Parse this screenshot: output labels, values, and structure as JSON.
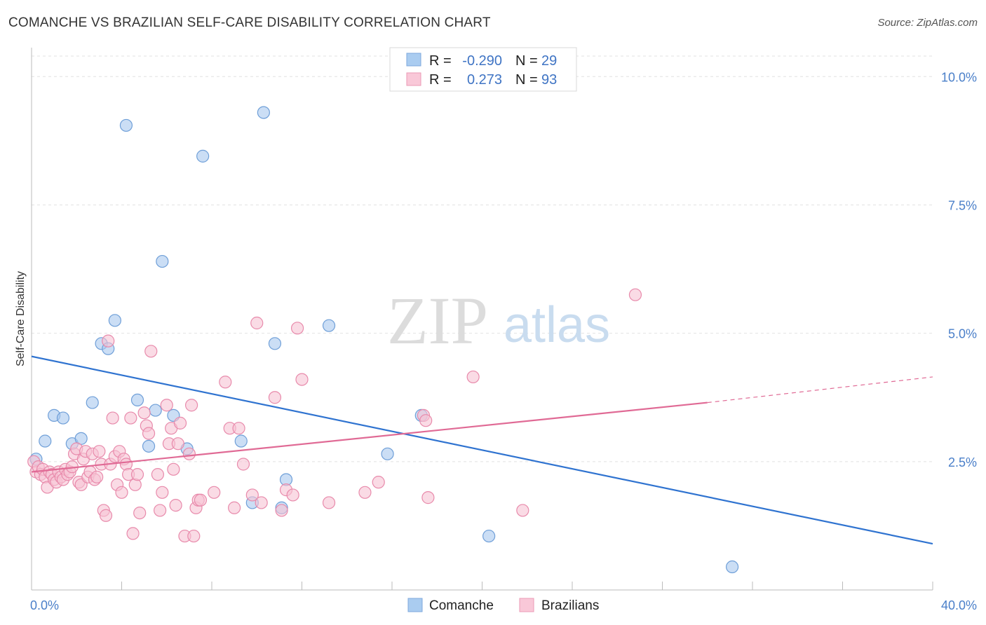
{
  "title": "COMANCHE VS BRAZILIAN SELF-CARE DISABILITY CORRELATION CHART",
  "source": "Source: ZipAtlas.com",
  "watermark": {
    "zip": "ZIP",
    "atlas": "atlas"
  },
  "chart_data": {
    "type": "scatter",
    "ylabel": "Self-Care Disability",
    "xlim": [
      0,
      40
    ],
    "ylim": [
      0,
      10.4
    ],
    "x_tick_labels": [
      "0.0%",
      "40.0%"
    ],
    "y_ticks": [
      2.5,
      5.0,
      7.5,
      10.0
    ],
    "y_tick_labels": [
      "2.5%",
      "5.0%",
      "7.5%",
      "10.0%"
    ],
    "grid": "horizontal dashed",
    "legend": {
      "placement": "top-center",
      "rows": [
        {
          "r_label": "R =",
          "r_value": "-0.290",
          "n_label": "N =",
          "n_value": "29",
          "color": "#aaccf0"
        },
        {
          "r_label": "R =",
          "r_value": "0.273",
          "n_label": "N =",
          "n_value": "93",
          "color": "#f5b8cc"
        }
      ]
    },
    "series": [
      {
        "name": "Comanche",
        "color": "#a9c8ee",
        "stroke": "#6f9fd8",
        "trend": {
          "x0": 0,
          "y0": 4.55,
          "x1": 40,
          "y1": 0.9,
          "color": "#2f73d0"
        },
        "points": [
          [
            0.2,
            2.55
          ],
          [
            0.6,
            2.9
          ],
          [
            1.0,
            3.4
          ],
          [
            1.4,
            3.35
          ],
          [
            1.8,
            2.85
          ],
          [
            2.2,
            2.95
          ],
          [
            2.7,
            3.65
          ],
          [
            3.1,
            4.8
          ],
          [
            3.4,
            4.7
          ],
          [
            3.7,
            5.25
          ],
          [
            4.2,
            9.05
          ],
          [
            4.7,
            3.7
          ],
          [
            5.2,
            2.8
          ],
          [
            5.5,
            3.5
          ],
          [
            5.8,
            6.4
          ],
          [
            6.3,
            3.4
          ],
          [
            6.9,
            2.75
          ],
          [
            7.6,
            8.45
          ],
          [
            9.3,
            2.9
          ],
          [
            9.8,
            1.7
          ],
          [
            10.3,
            9.3
          ],
          [
            10.8,
            4.8
          ],
          [
            11.1,
            1.6
          ],
          [
            11.3,
            2.15
          ],
          [
            13.2,
            5.15
          ],
          [
            15.8,
            2.65
          ],
          [
            17.3,
            3.4
          ],
          [
            20.3,
            1.05
          ],
          [
            31.1,
            0.45
          ]
        ]
      },
      {
        "name": "Brazilians",
        "color": "#f7c3d3",
        "stroke": "#e88aab",
        "trend": {
          "x0": 0,
          "y0": 2.3,
          "x1": 30,
          "y1": 3.65,
          "x2": 40,
          "y2": 4.15,
          "color": "#e06a95"
        },
        "points": [
          [
            0.1,
            2.5
          ],
          [
            0.2,
            2.3
          ],
          [
            0.3,
            2.4
          ],
          [
            0.4,
            2.25
          ],
          [
            0.5,
            2.35
          ],
          [
            0.6,
            2.2
          ],
          [
            0.7,
            2.0
          ],
          [
            0.8,
            2.3
          ],
          [
            0.9,
            2.25
          ],
          [
            1.0,
            2.15
          ],
          [
            1.1,
            2.1
          ],
          [
            1.2,
            2.3
          ],
          [
            1.3,
            2.2
          ],
          [
            1.4,
            2.15
          ],
          [
            1.5,
            2.35
          ],
          [
            1.6,
            2.25
          ],
          [
            1.7,
            2.3
          ],
          [
            1.8,
            2.4
          ],
          [
            1.9,
            2.65
          ],
          [
            2.0,
            2.75
          ],
          [
            2.1,
            2.1
          ],
          [
            2.2,
            2.05
          ],
          [
            2.3,
            2.55
          ],
          [
            2.4,
            2.7
          ],
          [
            2.5,
            2.2
          ],
          [
            2.6,
            2.3
          ],
          [
            2.7,
            2.65
          ],
          [
            2.8,
            2.15
          ],
          [
            2.9,
            2.2
          ],
          [
            3.0,
            2.7
          ],
          [
            3.1,
            2.45
          ],
          [
            3.2,
            1.55
          ],
          [
            3.3,
            1.45
          ],
          [
            3.4,
            4.85
          ],
          [
            3.5,
            2.45
          ],
          [
            3.6,
            3.35
          ],
          [
            3.7,
            2.6
          ],
          [
            3.8,
            2.05
          ],
          [
            3.9,
            2.7
          ],
          [
            4.0,
            1.9
          ],
          [
            4.1,
            2.55
          ],
          [
            4.2,
            2.45
          ],
          [
            4.3,
            2.25
          ],
          [
            4.4,
            3.35
          ],
          [
            4.5,
            1.1
          ],
          [
            4.6,
            2.05
          ],
          [
            4.7,
            2.25
          ],
          [
            4.8,
            1.5
          ],
          [
            5.0,
            3.45
          ],
          [
            5.1,
            3.2
          ],
          [
            5.2,
            3.05
          ],
          [
            5.3,
            4.65
          ],
          [
            5.6,
            2.25
          ],
          [
            5.7,
            1.55
          ],
          [
            5.8,
            1.9
          ],
          [
            6.0,
            3.6
          ],
          [
            6.1,
            2.85
          ],
          [
            6.2,
            3.15
          ],
          [
            6.3,
            2.35
          ],
          [
            6.4,
            1.65
          ],
          [
            6.5,
            2.85
          ],
          [
            6.6,
            3.25
          ],
          [
            6.8,
            1.05
          ],
          [
            7.0,
            2.65
          ],
          [
            7.1,
            3.6
          ],
          [
            7.2,
            1.05
          ],
          [
            7.3,
            1.6
          ],
          [
            7.4,
            1.75
          ],
          [
            7.5,
            1.75
          ],
          [
            8.1,
            1.9
          ],
          [
            8.6,
            4.05
          ],
          [
            8.8,
            3.15
          ],
          [
            9.0,
            1.6
          ],
          [
            9.2,
            3.15
          ],
          [
            9.4,
            2.45
          ],
          [
            9.8,
            1.85
          ],
          [
            10.0,
            5.2
          ],
          [
            10.2,
            1.7
          ],
          [
            10.8,
            3.75
          ],
          [
            11.1,
            1.55
          ],
          [
            11.3,
            1.95
          ],
          [
            11.6,
            1.85
          ],
          [
            11.8,
            5.1
          ],
          [
            12.0,
            4.1
          ],
          [
            13.2,
            1.7
          ],
          [
            14.8,
            1.9
          ],
          [
            15.4,
            2.1
          ],
          [
            17.4,
            3.4
          ],
          [
            17.5,
            3.3
          ],
          [
            17.6,
            1.8
          ],
          [
            19.6,
            4.15
          ],
          [
            21.8,
            1.55
          ],
          [
            26.8,
            5.75
          ]
        ]
      }
    ]
  }
}
